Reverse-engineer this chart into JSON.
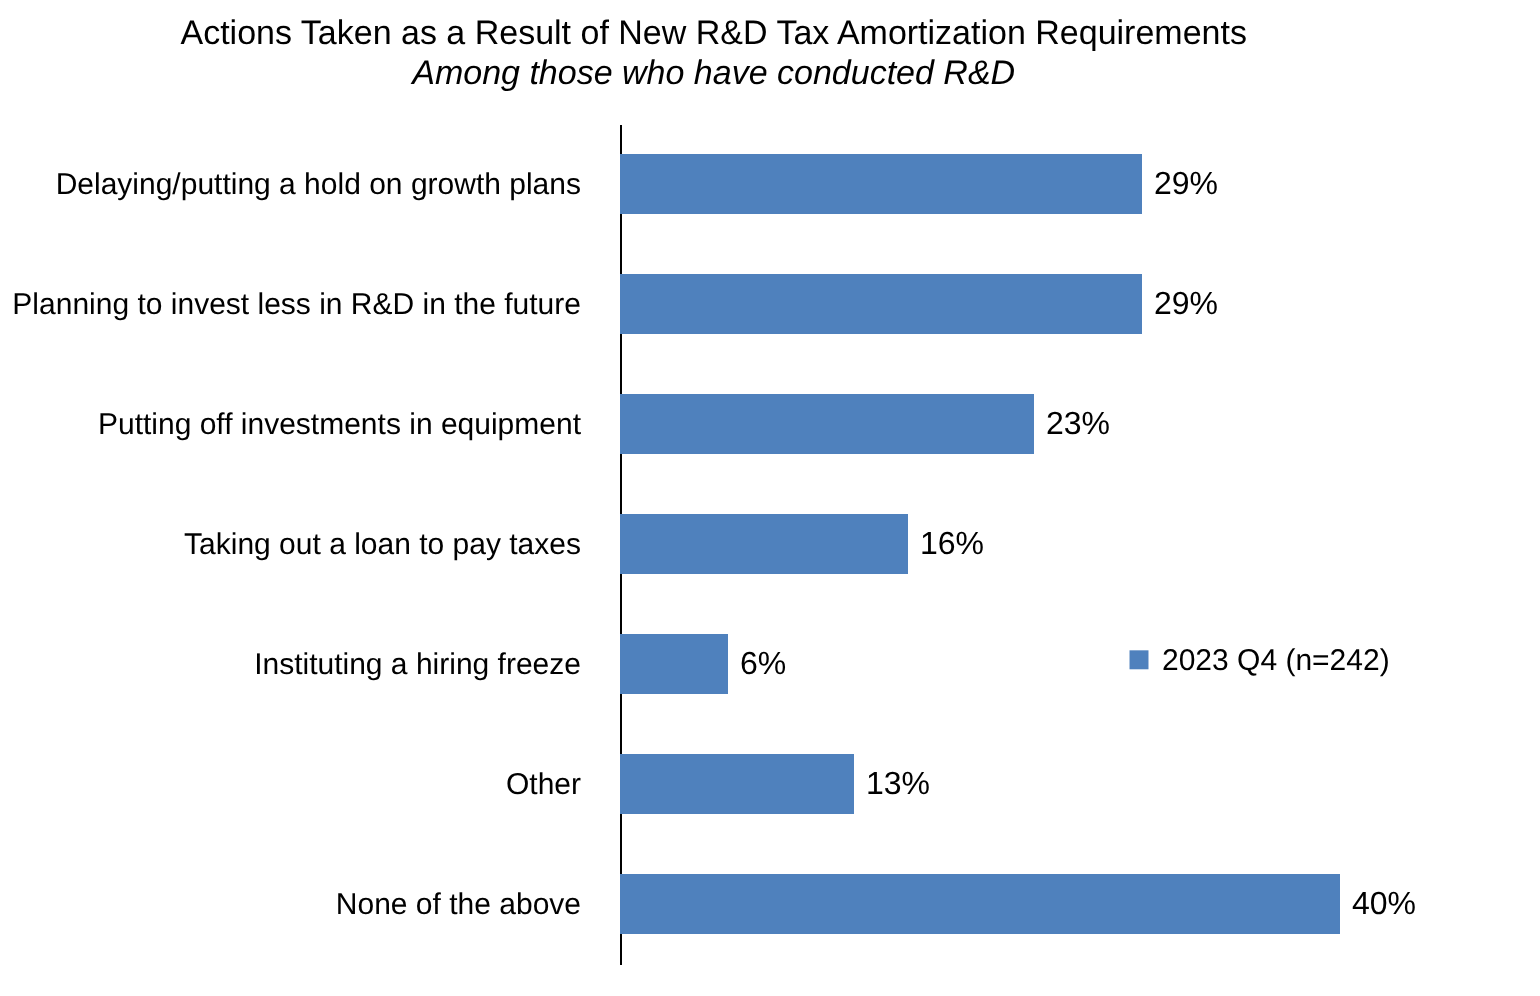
{
  "chart_data": {
    "type": "bar",
    "orientation": "horizontal",
    "title": "Actions Taken as a Result of New R&D Tax Amortization Requirements",
    "subtitle": "Among those who have conducted R&D",
    "categories": [
      "Delaying/putting a hold on growth plans",
      "Planning to invest less in R&D in the future",
      "Putting off investments in equipment",
      "Taking out a loan to pay taxes",
      "Instituting a hiring freeze",
      "Other",
      "None of the above"
    ],
    "series": [
      {
        "name": "2023 Q4 (n=242)",
        "color": "#4f81bd",
        "values": [
          29,
          29,
          23,
          16,
          6,
          13,
          40
        ],
        "value_labels": [
          "29%",
          "29%",
          "23%",
          "16%",
          "6%",
          "13%",
          "40%"
        ]
      }
    ],
    "legend": "right",
    "grid": false
  }
}
